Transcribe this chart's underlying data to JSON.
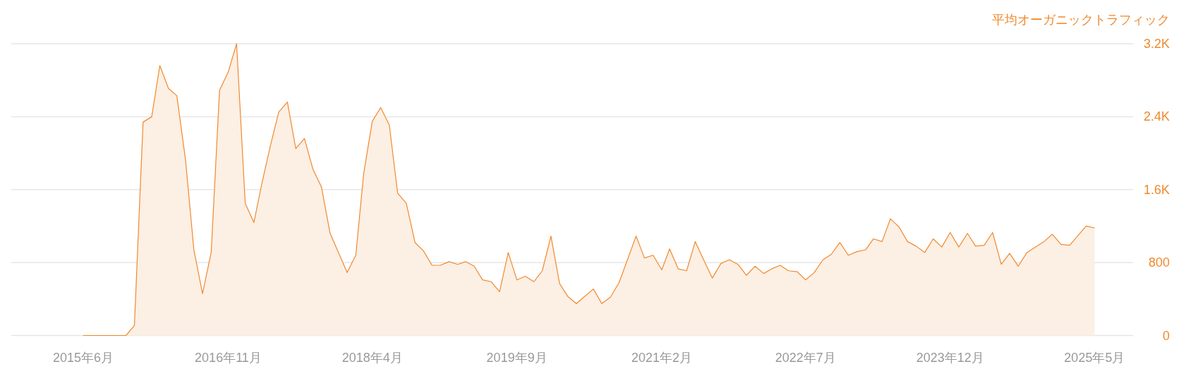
{
  "chart_data": {
    "type": "area",
    "ylabel": "平均オーガニックトラフィック",
    "color": "#f0892e",
    "grid": "y",
    "x": [
      "2015-06",
      "2015-07",
      "2015-08",
      "2015-09",
      "2015-10",
      "2015-11",
      "2015-12",
      "2016-01",
      "2016-02",
      "2016-03",
      "2016-04",
      "2016-05",
      "2016-06",
      "2016-07",
      "2016-08",
      "2016-09",
      "2016-10",
      "2016-11",
      "2016-12",
      "2017-01",
      "2017-02",
      "2017-03",
      "2017-04",
      "2017-05",
      "2017-06",
      "2017-07",
      "2017-08",
      "2017-09",
      "2017-10",
      "2017-11",
      "2017-12",
      "2018-01",
      "2018-02",
      "2018-03",
      "2018-04",
      "2018-05",
      "2018-06",
      "2018-07",
      "2018-08",
      "2018-09",
      "2018-10",
      "2018-11",
      "2018-12",
      "2019-01",
      "2019-02",
      "2019-03",
      "2019-04",
      "2019-05",
      "2019-06",
      "2019-07",
      "2019-08",
      "2019-09",
      "2019-10",
      "2019-11",
      "2019-12",
      "2020-01",
      "2020-02",
      "2020-03",
      "2020-04",
      "2020-05",
      "2020-06",
      "2020-07",
      "2020-08",
      "2020-09",
      "2020-10",
      "2020-11",
      "2020-12",
      "2021-01",
      "2021-02",
      "2021-03",
      "2021-04",
      "2021-05",
      "2021-06",
      "2021-07",
      "2021-08",
      "2021-09",
      "2021-10",
      "2021-11",
      "2021-12",
      "2022-01",
      "2022-02",
      "2022-03",
      "2022-04",
      "2022-05",
      "2022-06",
      "2022-07",
      "2022-08",
      "2022-09",
      "2022-10",
      "2022-11",
      "2022-12",
      "2023-01",
      "2023-02",
      "2023-03",
      "2023-04",
      "2023-05",
      "2023-06",
      "2023-07",
      "2023-08",
      "2023-09",
      "2023-10",
      "2023-11",
      "2023-12",
      "2024-01",
      "2024-02",
      "2024-03",
      "2024-04",
      "2024-05",
      "2024-06",
      "2024-07",
      "2024-08",
      "2024-09",
      "2024-10",
      "2024-11",
      "2024-12",
      "2025-01",
      "2025-02",
      "2025-03",
      "2025-04",
      "2025-05"
    ],
    "values": [
      0,
      0,
      0,
      0,
      0,
      0,
      110,
      2340,
      2400,
      2960,
      2710,
      2630,
      1930,
      940,
      460,
      910,
      2690,
      2890,
      3200,
      1450,
      1240,
      1660,
      2080,
      2450,
      2560,
      2050,
      2160,
      1820,
      1630,
      1120,
      910,
      690,
      880,
      1770,
      2350,
      2500,
      2310,
      1560,
      1450,
      1020,
      930,
      770,
      770,
      810,
      780,
      810,
      760,
      610,
      590,
      480,
      910,
      610,
      650,
      590,
      710,
      1090,
      570,
      430,
      350,
      430,
      510,
      350,
      420,
      580,
      830,
      1090,
      850,
      880,
      720,
      950,
      730,
      710,
      1030,
      830,
      630,
      790,
      830,
      780,
      660,
      760,
      680,
      730,
      770,
      710,
      700,
      610,
      690,
      830,
      890,
      1020,
      880,
      920,
      940,
      1060,
      1030,
      1280,
      1190,
      1030,
      980,
      910,
      1060,
      970,
      1130,
      970,
      1120,
      980,
      990,
      1130,
      780,
      900,
      760,
      910,
      970,
      1030,
      1110,
      1000,
      990,
      1090,
      1200,
      1180
    ],
    "xlim": [
      "2014-09-16",
      "2025-09-16"
    ],
    "xticks": [
      {
        "value": "2015-06",
        "label": "2015年6月"
      },
      {
        "value": "2016-11",
        "label": "2016年11月"
      },
      {
        "value": "2018-04",
        "label": "2018年4月"
      },
      {
        "value": "2019-09",
        "label": "2019年9月"
      },
      {
        "value": "2021-02",
        "label": "2021年2月"
      },
      {
        "value": "2022-07",
        "label": "2022年7月"
      },
      {
        "value": "2023-12",
        "label": "2023年12月"
      },
      {
        "value": "2025-05",
        "label": "2025年5月"
      }
    ],
    "ylim": [
      0,
      3200
    ],
    "yticks": [
      0,
      800,
      {
        "value": 1600,
        "label": "1.6K"
      },
      {
        "value": 2400,
        "label": "2.4K"
      },
      {
        "value": 3200,
        "label": "3.2K"
      }
    ]
  }
}
